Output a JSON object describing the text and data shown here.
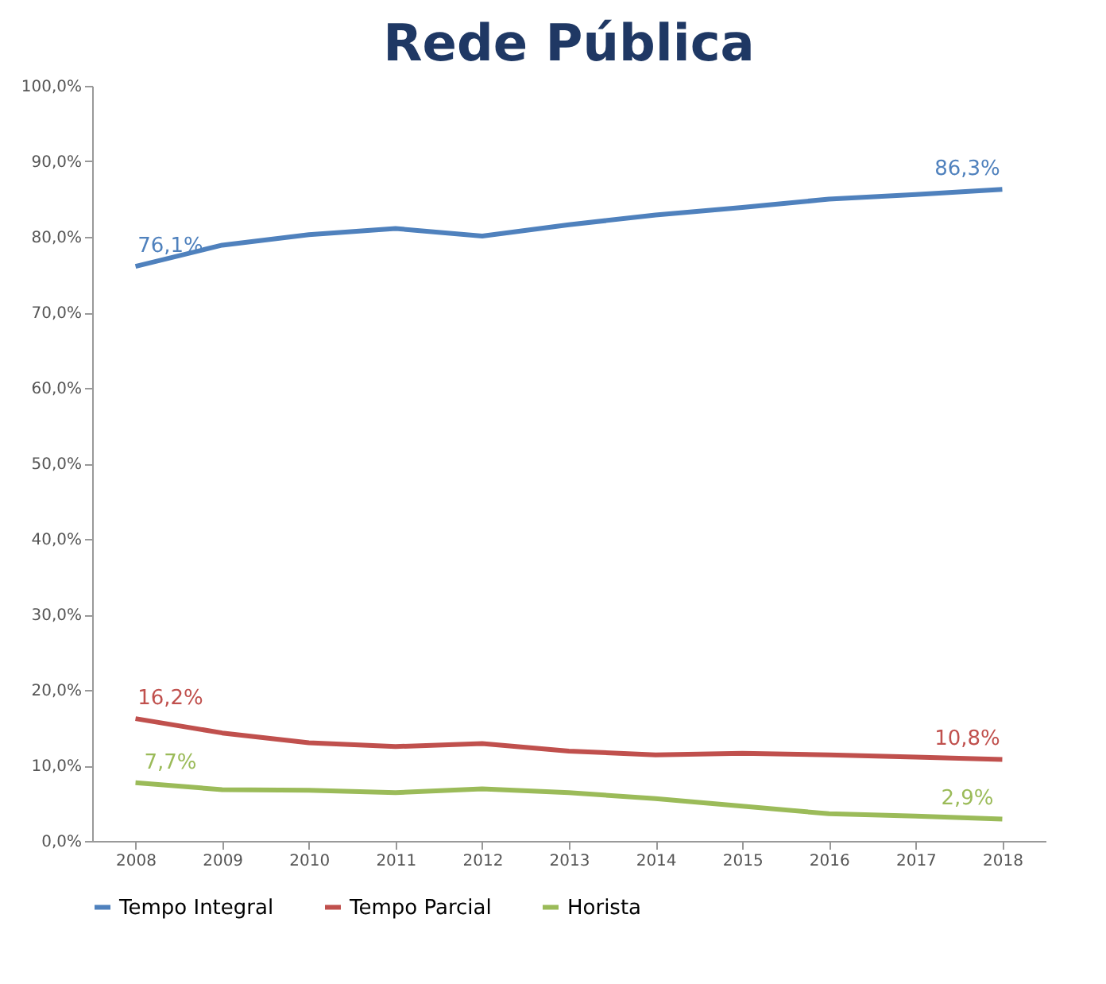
{
  "chart_data": {
    "type": "line",
    "title": "Rede Pública",
    "categories": [
      "2008",
      "2009",
      "2010",
      "2011",
      "2012",
      "2013",
      "2014",
      "2015",
      "2016",
      "2017",
      "2018"
    ],
    "series": [
      {
        "name": "Tempo Integral",
        "color": "#4f81bd",
        "values": [
          76.1,
          78.9,
          80.3,
          81.1,
          80.1,
          81.6,
          82.9,
          83.9,
          85.0,
          85.6,
          86.3
        ],
        "value_labels": [
          "76,1%",
          null,
          null,
          null,
          null,
          null,
          null,
          null,
          null,
          null,
          "86,3%"
        ]
      },
      {
        "name": "Tempo Parcial",
        "color": "#c0504d",
        "values": [
          16.2,
          14.3,
          13.0,
          12.5,
          12.9,
          11.9,
          11.4,
          11.6,
          11.4,
          11.1,
          10.8
        ],
        "value_labels": [
          "16,2%",
          null,
          null,
          null,
          null,
          null,
          null,
          null,
          null,
          null,
          "10,8%"
        ]
      },
      {
        "name": "Horista",
        "color": "#9bbb59",
        "values": [
          7.7,
          6.8,
          6.7,
          6.4,
          6.9,
          6.4,
          5.6,
          4.6,
          3.6,
          3.3,
          2.9
        ],
        "value_labels": [
          "7,7%",
          null,
          null,
          null,
          null,
          null,
          null,
          null,
          null,
          null,
          "2,9%"
        ]
      }
    ],
    "ylim": [
      0,
      100
    ],
    "yticks": [
      {
        "value": 0,
        "label": "0,0%"
      },
      {
        "value": 10,
        "label": "10,0%"
      },
      {
        "value": 20,
        "label": "20,0%"
      },
      {
        "value": 30,
        "label": "30,0%"
      },
      {
        "value": 40,
        "label": "40,0%"
      },
      {
        "value": 50,
        "label": "50,0%"
      },
      {
        "value": 60,
        "label": "60,0%"
      },
      {
        "value": 70,
        "label": "70,0%"
      },
      {
        "value": 80,
        "label": "80,0%"
      },
      {
        "value": 90,
        "label": "90,0%"
      },
      {
        "value": 100,
        "label": "100,0%"
      }
    ],
    "grid": false,
    "legend": "bottom",
    "marker": "none",
    "line_style": "solid"
  }
}
